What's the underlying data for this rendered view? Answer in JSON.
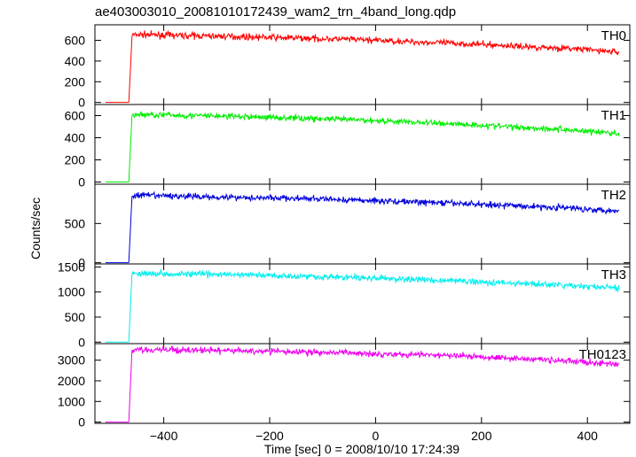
{
  "title": "ae403003010_20081010172439_wam2_trn_4band_long.qdp",
  "ylabel": "Counts/sec",
  "xlabel": "Time [sec] 0 = 2008/10/10 17:24:39",
  "chart_data": {
    "type": "line",
    "title": "ae403003010_20081010172439_wam2_trn_4band_long.qdp",
    "xlabel": "Time [sec] 0 = 2008/10/10 17:24:39",
    "ylabel": "Counts/sec",
    "xlim": [
      -530,
      480
    ],
    "x_ticks": [
      -400,
      -200,
      0,
      200,
      400
    ],
    "x_tick_labels": [
      "−400",
      "−200",
      "0",
      "200",
      "400"
    ],
    "grid": false,
    "panels": [
      {
        "name": "TH0",
        "color": "#ff0000",
        "ylim": [
          -20,
          750
        ],
        "y_ticks": [
          0,
          200,
          400,
          600
        ],
        "series": [
          {
            "x": [
              -510,
              -466
            ],
            "y": [
              0,
              0
            ]
          },
          {
            "x": [
              -466,
              -460,
              -440,
              -400,
              -350,
              -300,
              -250,
              -200,
              -150,
              -100,
              -50,
              0,
              50,
              100,
              150,
              200,
              250,
              300,
              350,
              400,
              450,
              460
            ],
            "y": [
              0,
              650,
              655,
              650,
              645,
              640,
              635,
              628,
              622,
              615,
              610,
              600,
              590,
              580,
              570,
              560,
              548,
              535,
              525,
              510,
              490,
              485
            ]
          }
        ]
      },
      {
        "name": "TH1",
        "color": "#00ee00",
        "ylim": [
          -20,
          700
        ],
        "y_ticks": [
          0,
          200,
          400,
          600
        ],
        "series": [
          {
            "x": [
              -510,
              -466
            ],
            "y": [
              0,
              0
            ]
          },
          {
            "x": [
              -466,
              -460,
              -440,
              -400,
              -350,
              -300,
              -250,
              -200,
              -150,
              -100,
              -50,
              0,
              50,
              100,
              150,
              200,
              250,
              300,
              350,
              400,
              450,
              460
            ],
            "y": [
              0,
              605,
              610,
              605,
              600,
              596,
              590,
              585,
              578,
              570,
              563,
              555,
              545,
              535,
              525,
              513,
              500,
              488,
              475,
              460,
              440,
              435
            ]
          }
        ]
      },
      {
        "name": "TH2",
        "color": "#0000dd",
        "ylim": [
          -15,
          1000
        ],
        "y_ticks": [
          0,
          500
        ],
        "series": [
          {
            "x": [
              -510,
              -466
            ],
            "y": [
              0,
              0
            ]
          },
          {
            "x": [
              -466,
              -460,
              -440,
              -400,
              -350,
              -300,
              -250,
              -200,
              -150,
              -100,
              -50,
              0,
              50,
              100,
              150,
              200,
              250,
              300,
              350,
              400,
              450,
              460
            ],
            "y": [
              0,
              850,
              858,
              852,
              845,
              838,
              832,
              826,
              818,
              810,
              800,
              790,
              780,
              768,
              756,
              745,
              730,
              715,
              702,
              685,
              665,
              660
            ]
          }
        ]
      },
      {
        "name": "TH3",
        "color": "#00eeee",
        "ylim": [
          -30,
          1560
        ],
        "y_ticks": [
          0,
          500,
          1000,
          1500
        ],
        "series": [
          {
            "x": [
              -510,
              -466
            ],
            "y": [
              0,
              0
            ]
          },
          {
            "x": [
              -466,
              -460,
              -440,
              -400,
              -350,
              -300,
              -250,
              -200,
              -150,
              -100,
              -50,
              0,
              50,
              100,
              150,
              200,
              250,
              300,
              350,
              400,
              450,
              460
            ],
            "y": [
              0,
              1370,
              1375,
              1368,
              1360,
              1350,
              1342,
              1330,
              1318,
              1305,
              1290,
              1275,
              1258,
              1240,
              1222,
              1203,
              1180,
              1158,
              1135,
              1110,
              1080,
              1070
            ]
          }
        ]
      },
      {
        "name": "TH0123",
        "color": "#ee00ee",
        "ylim": [
          -60,
          3800
        ],
        "y_ticks": [
          0,
          1000,
          2000,
          3000
        ],
        "series": [
          {
            "x": [
              -510,
              -466
            ],
            "y": [
              0,
              0
            ]
          },
          {
            "x": [
              -466,
              -460,
              -440,
              -400,
              -350,
              -300,
              -250,
              -200,
              -150,
              -100,
              -50,
              0,
              50,
              100,
              150,
              200,
              250,
              300,
              350,
              400,
              450,
              460
            ],
            "y": [
              0,
              3500,
              3510,
              3495,
              3480,
              3465,
              3445,
              3425,
              3400,
              3375,
              3350,
              3320,
              3285,
              3250,
              3210,
              3170,
              3110,
              3045,
              2980,
              2900,
              2800,
              2770
            ]
          }
        ]
      }
    ]
  }
}
